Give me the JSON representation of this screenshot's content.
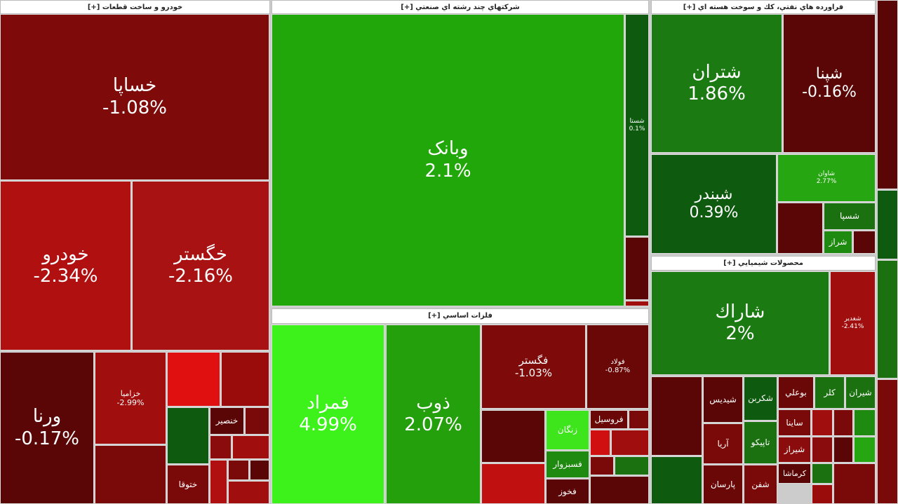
{
  "sectors": [
    {
      "title": "خودرو و ساخت قطعات [+]",
      "tiles": [
        {
          "name": "خساپا",
          "change": "-1.08%"
        },
        {
          "name": "خودرو",
          "change": "-2.34%"
        },
        {
          "name": "خگستر",
          "change": "-2.16%"
        },
        {
          "name": "ورنا",
          "change": "-0.17%"
        },
        {
          "name": "خزامیا",
          "change": "-2.99%"
        },
        {
          "name": "خنصير"
        },
        {
          "name": "ختوقا"
        }
      ]
    },
    {
      "title": "شرکتهاي چند رشته اي صنعتي [+]",
      "tiles": [
        {
          "name": "وبانک",
          "change": "2.1%"
        },
        {
          "name": "شستا",
          "change": "0.1%"
        }
      ]
    },
    {
      "title": "فلزات اساسي [+]",
      "tiles": [
        {
          "name": "فمراد",
          "change": "4.99%"
        },
        {
          "name": "ذوب",
          "change": "2.07%"
        },
        {
          "name": "فگستر",
          "change": "-1.03%"
        },
        {
          "name": "فولاد",
          "change": "-0.87%"
        },
        {
          "name": "زنگان"
        },
        {
          "name": "فسبزوار"
        },
        {
          "name": "فخوز"
        },
        {
          "name": "فروسيل"
        }
      ]
    },
    {
      "title": "فراورده هاي نفتي، كك و سوخت هسته اي [+]",
      "tiles": [
        {
          "name": "شتران",
          "change": "1.86%"
        },
        {
          "name": "شپنا",
          "change": "-0.16%"
        },
        {
          "name": "شبندر",
          "change": "0.39%"
        },
        {
          "name": "شاوان",
          "change": "2.77%"
        },
        {
          "name": "شسپا"
        },
        {
          "name": "شراز"
        }
      ]
    },
    {
      "title": "محصولات شيميايي [+]",
      "tiles": [
        {
          "name": "شاراك",
          "change": "2%"
        },
        {
          "name": "شغدير",
          "change": "-2.41%"
        },
        {
          "name": "شيديس"
        },
        {
          "name": "شكربن"
        },
        {
          "name": "بوعلي"
        },
        {
          "name": "كلر"
        },
        {
          "name": "شيران"
        },
        {
          "name": "ساينا"
        },
        {
          "name": "شيراز"
        },
        {
          "name": "آريا"
        },
        {
          "name": "تاپيكو"
        },
        {
          "name": "كرماشا"
        },
        {
          "name": "پارسان"
        },
        {
          "name": "شفن"
        }
      ]
    }
  ]
}
